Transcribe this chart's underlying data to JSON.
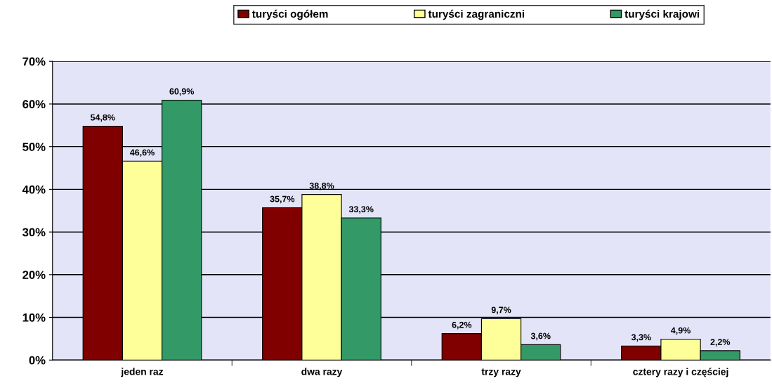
{
  "chart_data": {
    "type": "bar",
    "categories": [
      "jeden raz",
      "dwa razy",
      "trzy razy",
      "cztery razy i częściej"
    ],
    "series": [
      {
        "name": "turyści ogółem",
        "color": "#800000",
        "values": [
          54.8,
          35.7,
          6.2,
          3.3
        ],
        "value_labels": [
          "54,8%",
          "35,7%",
          "6,2%",
          "3,3%"
        ]
      },
      {
        "name": "turyści zagraniczni",
        "color": "#ffff99",
        "values": [
          46.6,
          38.8,
          9.7,
          4.9
        ],
        "value_labels": [
          "46,6%",
          "38,8%",
          "9,7%",
          "4,9%"
        ]
      },
      {
        "name": "turyści krajowi",
        "color": "#339966",
        "values": [
          60.9,
          33.3,
          3.6,
          2.2
        ],
        "value_labels": [
          "60,9%",
          "33,3%",
          "3,6%",
          "2,2%"
        ]
      }
    ],
    "ylim": [
      0,
      70
    ],
    "yticks": [
      {
        "value": 0,
        "label": "0%"
      },
      {
        "value": 10,
        "label": "10%"
      },
      {
        "value": 20,
        "label": "20%"
      },
      {
        "value": 30,
        "label": "30%"
      },
      {
        "value": 40,
        "label": "40%"
      },
      {
        "value": 50,
        "label": "50%"
      },
      {
        "value": 60,
        "label": "60%"
      },
      {
        "value": 70,
        "label": "70%"
      }
    ],
    "grid": "y",
    "legend": "top"
  }
}
